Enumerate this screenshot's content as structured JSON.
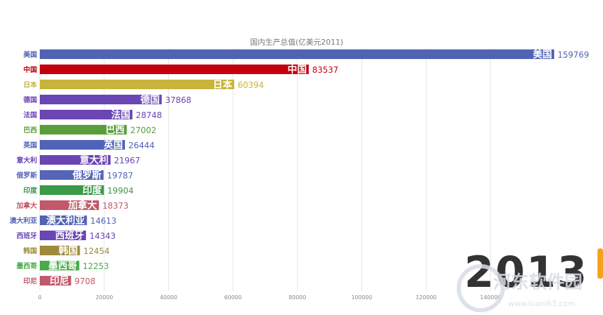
{
  "chart_data": {
    "type": "bar",
    "orientation": "horizontal",
    "title": "国内生产总值(亿美元2011)",
    "year_label": "2013",
    "xlim": [
      0,
      160000
    ],
    "x_ticks": [
      0,
      20000,
      40000,
      60000,
      80000,
      100000,
      120000,
      140000
    ],
    "x_tick_labels": [
      "0",
      "20000",
      "40000",
      "60000",
      "80000",
      "100000",
      "120000",
      "140000"
    ],
    "grid": true,
    "categories": [
      "美国",
      "中国",
      "日本",
      "德国",
      "法国",
      "巴西",
      "英国",
      "意大利",
      "俄罗斯",
      "印度",
      "加拿大",
      "澳大利亚",
      "西班牙",
      "韩国",
      "墨西哥",
      "印尼"
    ],
    "values": [
      159769,
      83537,
      60394,
      37868,
      28748,
      27002,
      26444,
      21967,
      19787,
      19904,
      18373,
      14613,
      14343,
      12454,
      12253,
      9708
    ],
    "value_labels": [
      "159769",
      "83537",
      "60394",
      "37868",
      "28748",
      "27002",
      "26444",
      "21967",
      "19787",
      "19904",
      "18373",
      "14613",
      "14343",
      "12454",
      "12253",
      "9708"
    ],
    "colors": [
      "#5163b5",
      "#c3000e",
      "#c8b43c",
      "#6a45b4",
      "#6a45b4",
      "#5a9e3c",
      "#4f63b8",
      "#6a45b4",
      "#5565b8",
      "#3a9a48",
      "#c2586a",
      "#5163b5",
      "#6a45b4",
      "#9e8a3c",
      "#4aaa48",
      "#c2586a"
    ]
  },
  "watermark": {
    "brand_text": "河东软件园",
    "url_text": "www.luanl63.com",
    "colors": {
      "circle": "#d8dde6",
      "text": "#d6dbe4"
    }
  }
}
